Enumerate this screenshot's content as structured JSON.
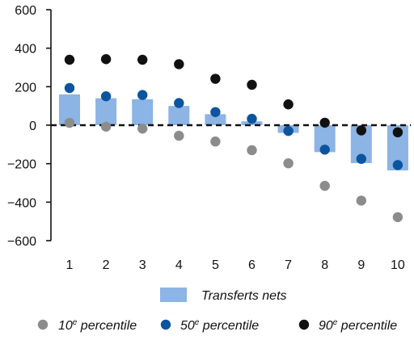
{
  "chart_data": {
    "type": "bar",
    "title": "",
    "xlabel": "",
    "ylabel": "",
    "categories": [
      "1",
      "2",
      "3",
      "4",
      "5",
      "6",
      "7",
      "8",
      "9",
      "10"
    ],
    "ylim": [
      -600,
      600
    ],
    "yticks": [
      "600",
      "400",
      "200",
      "0",
      "−200",
      "−400",
      "−600"
    ],
    "ytick_values": [
      600,
      400,
      200,
      0,
      -200,
      -400,
      -600
    ],
    "grid": false,
    "zero_line": "dashed",
    "legend_position": "bottom",
    "bars": {
      "name": "Transferts nets",
      "color": "#8cb4e4",
      "values": [
        160,
        140,
        135,
        100,
        57,
        20,
        -40,
        -140,
        -197,
        -235
      ]
    },
    "points": [
      {
        "name_prefix": "10",
        "name_sup": "e",
        "name_suffix": " percentile",
        "color": "#8c8c8c",
        "values": [
          12,
          -8,
          -18,
          -55,
          -85,
          -130,
          -198,
          -315,
          -392,
          -478
        ]
      },
      {
        "name_prefix": "50",
        "name_sup": "e",
        "name_suffix": " percentile",
        "color": "#0b55a0",
        "values": [
          193,
          150,
          157,
          115,
          68,
          33,
          -30,
          -127,
          -175,
          -207
        ]
      },
      {
        "name_prefix": "90",
        "name_sup": "e",
        "name_suffix": " percentile",
        "color": "#111111",
        "values": [
          340,
          343,
          340,
          317,
          241,
          210,
          108,
          13,
          -27,
          -37
        ]
      }
    ]
  }
}
